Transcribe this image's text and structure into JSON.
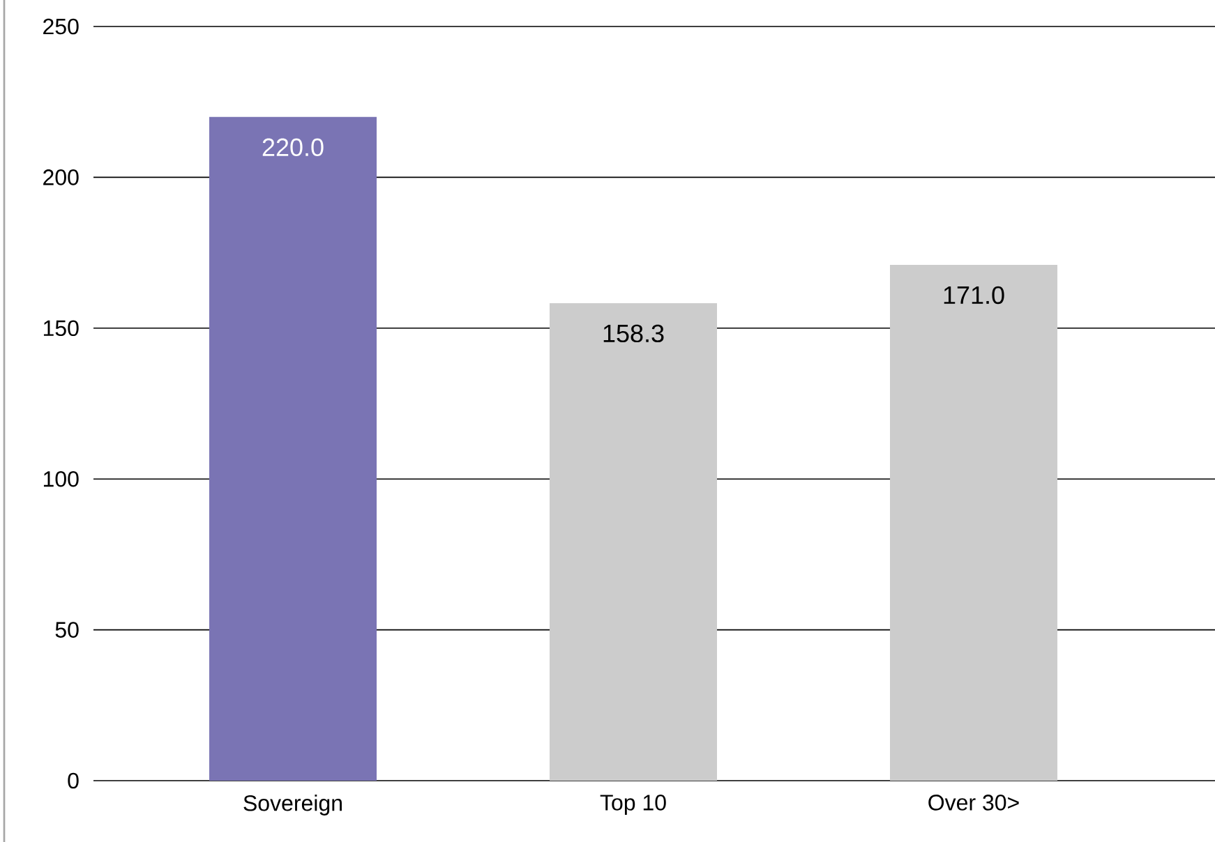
{
  "chart_data": {
    "type": "bar",
    "categories": [
      "Sovereign",
      "Top 10",
      "Over 30>"
    ],
    "values": [
      220.0,
      158.3,
      171.0
    ],
    "colors": [
      "#7a74b4",
      "#cccccc",
      "#cccccc"
    ],
    "ylim": [
      0,
      250
    ],
    "yticks": [
      0,
      50,
      100,
      150,
      200,
      250
    ],
    "value_labels": [
      "220.0",
      "158.3",
      "171.0"
    ],
    "grid": "y"
  }
}
